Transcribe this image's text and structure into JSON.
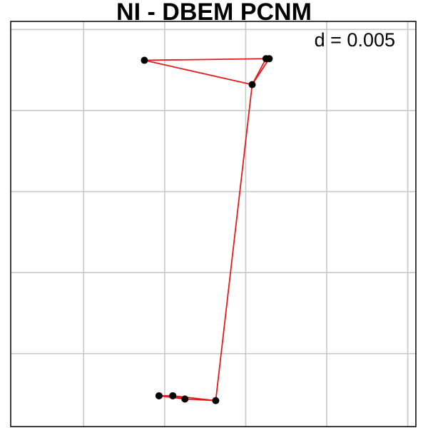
{
  "chart_data": {
    "type": "scatter",
    "title": "NI -  DBEM  PCNM",
    "xlabel": "",
    "ylabel": "",
    "grid": true,
    "grid_spacing_units": 0.005,
    "annotation": "d = 0.005",
    "xlim": [
      -0.0095,
      0.0155
    ],
    "ylim": [
      -0.0145,
      0.0105
    ],
    "points": [
      {
        "x": -0.00125,
        "y": 0.0081
      },
      {
        "x": 0.00625,
        "y": 0.0082
      },
      {
        "x": 0.00645,
        "y": 0.0082
      },
      {
        "x": 0.0054,
        "y": 0.0066
      },
      {
        "x": 0.00315,
        "y": -0.0129
      },
      {
        "x": 0.00125,
        "y": -0.0128
      },
      {
        "x": 0.0005,
        "y": -0.0126
      },
      {
        "x": -0.00035,
        "y": -0.0126
      }
    ],
    "edges": [
      [
        0,
        1
      ],
      [
        1,
        2
      ],
      [
        1,
        3
      ],
      [
        2,
        3
      ],
      [
        0,
        3
      ],
      [
        3,
        4
      ],
      [
        4,
        5
      ],
      [
        4,
        6
      ],
      [
        5,
        6
      ],
      [
        6,
        7
      ],
      [
        5,
        7
      ]
    ],
    "colors": {
      "edge": "#e41a1c",
      "point": "#000000",
      "grid": "#c8c8c8",
      "frame": "#000000"
    }
  }
}
